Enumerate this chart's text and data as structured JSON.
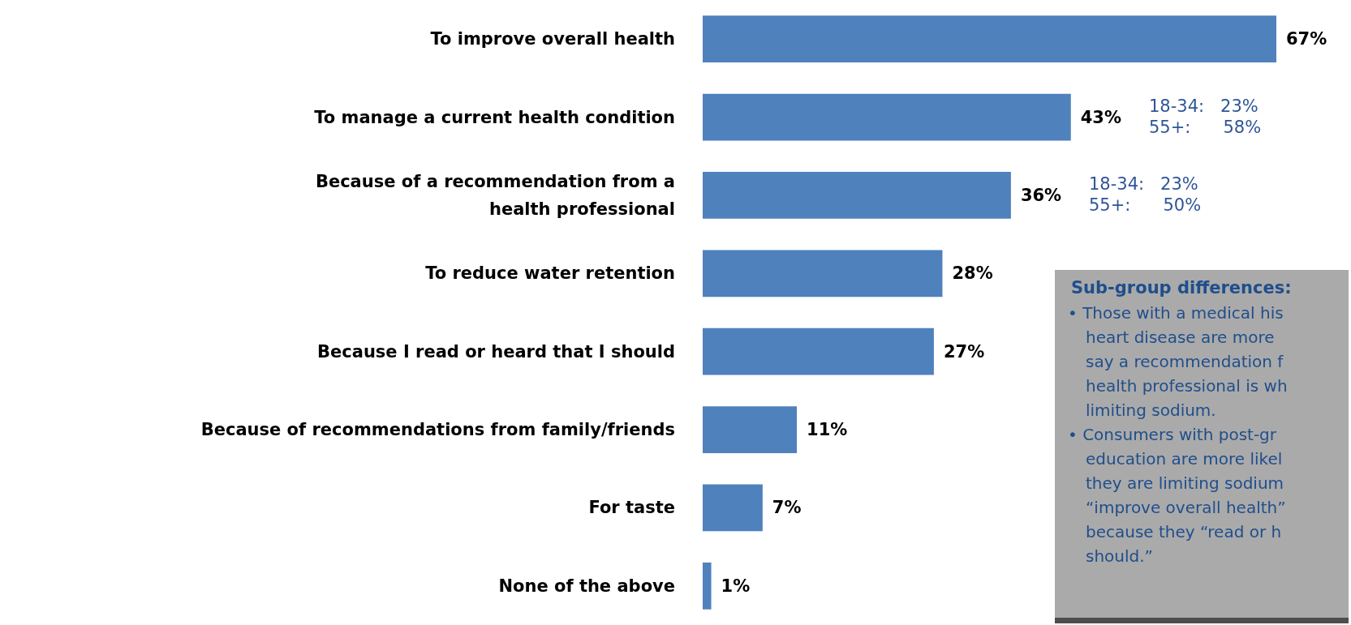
{
  "chart_data": {
    "type": "bar",
    "orientation": "horizontal",
    "color": "#4f81bd",
    "categories": [
      "To improve overall health",
      "To manage a current health condition",
      "Because of a recommendation from a\nhealth professional",
      "To reduce water retention",
      "Because I read or heard that I should",
      "Because of recommendations from family/friends",
      "For taste",
      "None of the above"
    ],
    "values": [
      67,
      43,
      36,
      28,
      27,
      11,
      7,
      1
    ],
    "value_labels": [
      "67%",
      "43%",
      "36%",
      "28%",
      "27%",
      "11%",
      "7%",
      "1%"
    ],
    "annotations": [
      "18-34:   23%\n55+:      58%",
      "18-34:   23%\n55+:      50%",
      "Sub-group differences:",
      "• Those with a medical his\nheart disease are more\nsay a recommendation f\nhealth professional is wh\nlimiting sodium.",
      "• Consumers with post-gr\neducation are more likel\nthey are limiting sodium\n“improve overall health”\nbecause they “read or h\nshould.”"
    ]
  }
}
